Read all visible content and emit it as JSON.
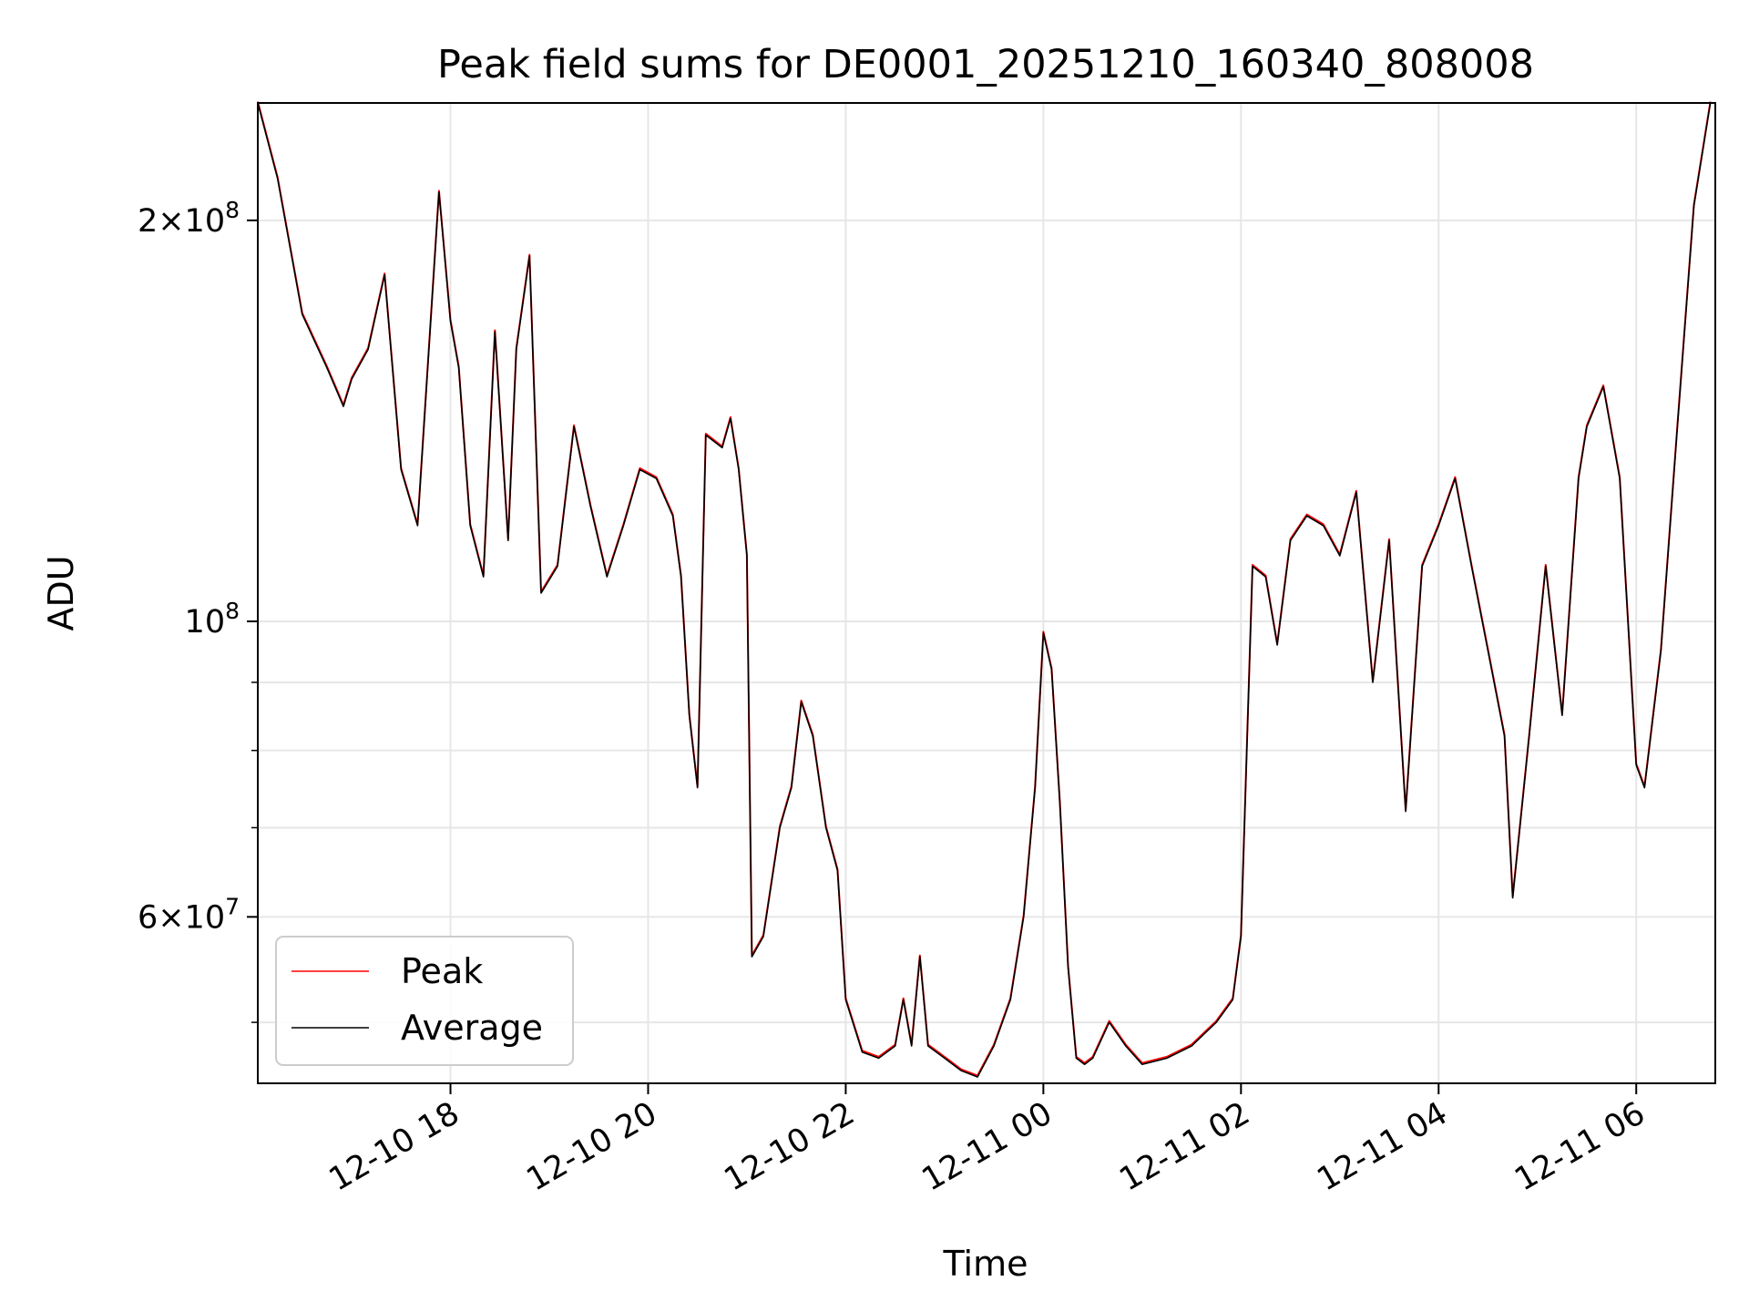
{
  "chart_data": {
    "type": "line",
    "title": "Peak field sums for DE0001_20251210_160340_808008",
    "xlabel": "Time",
    "ylabel": "ADU",
    "yscale": "log",
    "grid": true,
    "legend_position": "lower-left",
    "xlim": [
      "2025-12-10 16:03",
      "2025-12-11 06:48"
    ],
    "ylim": [
      45000000,
      245000000
    ],
    "x_ticks": [
      {
        "value": "2025-12-10 18:00",
        "label": "12-10 18"
      },
      {
        "value": "2025-12-10 20:00",
        "label": "12-10 20"
      },
      {
        "value": "2025-12-10 22:00",
        "label": "12-10 22"
      },
      {
        "value": "2025-12-11 00:00",
        "label": "12-11 00"
      },
      {
        "value": "2025-12-11 02:00",
        "label": "12-11 02"
      },
      {
        "value": "2025-12-11 04:00",
        "label": "12-11 04"
      },
      {
        "value": "2025-12-11 06:00",
        "label": "12-11 06"
      }
    ],
    "y_ticks": [
      {
        "value": 60000000,
        "mant": "6",
        "exp": "7"
      },
      {
        "value": 100000000,
        "mant": "",
        "exp": "8"
      },
      {
        "value": 200000000,
        "mant": "2",
        "exp": "8"
      }
    ],
    "y_minor_ticks": [
      50000000,
      70000000,
      80000000,
      90000000
    ],
    "series": [
      {
        "name": "Peak",
        "color": "#ff0000"
      },
      {
        "name": "Average",
        "color": "#000000"
      }
    ],
    "x": [
      "2025-12-10 16:03",
      "2025-12-10 16:15",
      "2025-12-10 16:30",
      "2025-12-10 16:45",
      "2025-12-10 16:55",
      "2025-12-10 17:00",
      "2025-12-10 17:10",
      "2025-12-10 17:20",
      "2025-12-10 17:30",
      "2025-12-10 17:40",
      "2025-12-10 17:48",
      "2025-12-10 17:53",
      "2025-12-10 18:00",
      "2025-12-10 18:05",
      "2025-12-10 18:12",
      "2025-12-10 18:20",
      "2025-12-10 18:27",
      "2025-12-10 18:35",
      "2025-12-10 18:40",
      "2025-12-10 18:48",
      "2025-12-10 18:55",
      "2025-12-10 19:05",
      "2025-12-10 19:15",
      "2025-12-10 19:25",
      "2025-12-10 19:35",
      "2025-12-10 19:45",
      "2025-12-10 19:55",
      "2025-12-10 20:05",
      "2025-12-10 20:15",
      "2025-12-10 20:20",
      "2025-12-10 20:25",
      "2025-12-10 20:30",
      "2025-12-10 20:35",
      "2025-12-10 20:45",
      "2025-12-10 20:50",
      "2025-12-10 20:55",
      "2025-12-10 21:00",
      "2025-12-10 21:03",
      "2025-12-10 21:10",
      "2025-12-10 21:20",
      "2025-12-10 21:27",
      "2025-12-10 21:33",
      "2025-12-10 21:40",
      "2025-12-10 21:48",
      "2025-12-10 21:55",
      "2025-12-10 22:00",
      "2025-12-10 22:10",
      "2025-12-10 22:20",
      "2025-12-10 22:30",
      "2025-12-10 22:35",
      "2025-12-10 22:40",
      "2025-12-10 22:45",
      "2025-12-10 22:50",
      "2025-12-10 23:00",
      "2025-12-10 23:10",
      "2025-12-10 23:20",
      "2025-12-10 23:30",
      "2025-12-10 23:40",
      "2025-12-10 23:48",
      "2025-12-10 23:55",
      "2025-12-11 00:00",
      "2025-12-11 00:05",
      "2025-12-11 00:10",
      "2025-12-11 00:15",
      "2025-12-11 00:20",
      "2025-12-11 00:25",
      "2025-12-11 00:30",
      "2025-12-11 00:40",
      "2025-12-11 00:50",
      "2025-12-11 01:00",
      "2025-12-11 01:15",
      "2025-12-11 01:30",
      "2025-12-11 01:45",
      "2025-12-11 01:55",
      "2025-12-11 02:00",
      "2025-12-11 02:07",
      "2025-12-11 02:15",
      "2025-12-11 02:22",
      "2025-12-11 02:30",
      "2025-12-11 02:40",
      "2025-12-11 02:50",
      "2025-12-11 03:00",
      "2025-12-11 03:10",
      "2025-12-11 03:20",
      "2025-12-11 03:30",
      "2025-12-11 03:40",
      "2025-12-11 03:50",
      "2025-12-11 04:00",
      "2025-12-11 04:10",
      "2025-12-11 04:20",
      "2025-12-11 04:30",
      "2025-12-11 04:40",
      "2025-12-11 04:45",
      "2025-12-11 04:55",
      "2025-12-11 05:05",
      "2025-12-11 05:15",
      "2025-12-11 05:25",
      "2025-12-11 05:30",
      "2025-12-11 05:40",
      "2025-12-11 05:50",
      "2025-12-11 06:00",
      "2025-12-11 06:05",
      "2025-12-11 06:15",
      "2025-12-11 06:25",
      "2025-12-11 06:35",
      "2025-12-11 06:45"
    ],
    "values": [
      245000000,
      215000000,
      170000000,
      155000000,
      145000000,
      152000000,
      160000000,
      182000000,
      130000000,
      118000000,
      168000000,
      210000000,
      168000000,
      155000000,
      118000000,
      108000000,
      165000000,
      115000000,
      160000000,
      188000000,
      105000000,
      110000000,
      140000000,
      122000000,
      108000000,
      118000000,
      130000000,
      128000000,
      120000000,
      108000000,
      85000000,
      75000000,
      138000000,
      135000000,
      142000000,
      130000000,
      112000000,
      56000000,
      58000000,
      70000000,
      75000000,
      87000000,
      82000000,
      70000000,
      65000000,
      52000000,
      47500000,
      47000000,
      48000000,
      52000000,
      48000000,
      56000000,
      48000000,
      47000000,
      46000000,
      45500000,
      48000000,
      52000000,
      60000000,
      75000000,
      98000000,
      92000000,
      73000000,
      55000000,
      47000000,
      46500000,
      47000000,
      50000000,
      48000000,
      46500000,
      47000000,
      48000000,
      50000000,
      52000000,
      58000000,
      110000000,
      108000000,
      96000000,
      115000000,
      120000000,
      118000000,
      112000000,
      125000000,
      90000000,
      115000000,
      72000000,
      110000000,
      118000000,
      128000000,
      110000000,
      95000000,
      82000000,
      62000000,
      82000000,
      110000000,
      85000000,
      128000000,
      140000000,
      150000000,
      128000000,
      78000000,
      75000000,
      95000000,
      140000000,
      205000000,
      245000000
    ]
  }
}
